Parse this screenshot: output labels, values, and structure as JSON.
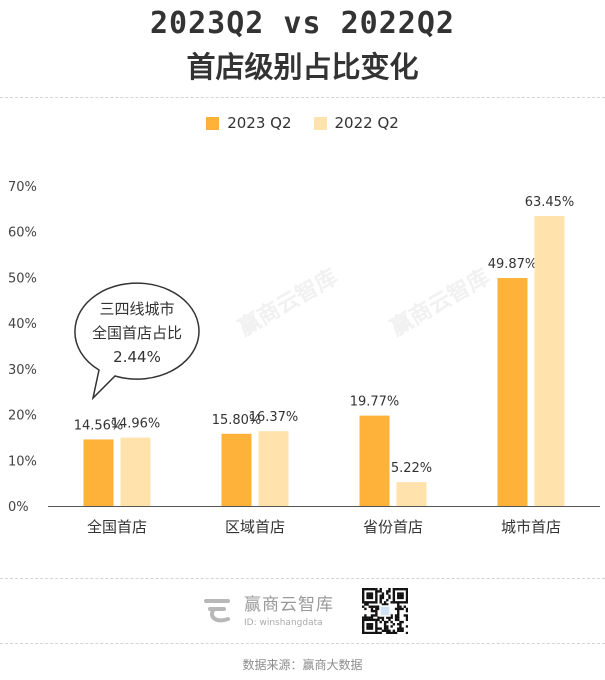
{
  "header": {
    "title_line1": "2023Q2  vs  2022Q2",
    "title_line2": "首店级别占比变化"
  },
  "chart_data": {
    "type": "bar",
    "categories": [
      "全国首店",
      "区域首店",
      "省份首店",
      "城市首店"
    ],
    "series": [
      {
        "name": "2023 Q2",
        "values": [
          14.56,
          15.8,
          19.77,
          49.87
        ],
        "labels": [
          "14.56%",
          "15.80%",
          "19.77%",
          "49.87%"
        ],
        "color": "#FFB23A"
      },
      {
        "name": "2022 Q2",
        "values": [
          14.96,
          16.37,
          5.22,
          63.45
        ],
        "labels": [
          "14.96%",
          "16.37%",
          "5.22%",
          "63.45%"
        ],
        "color": "#FFE2AC"
      }
    ],
    "ylim": [
      0,
      70
    ],
    "yticks": [
      "0%",
      "10%",
      "20%",
      "30%",
      "40%",
      "50%",
      "60%",
      "70%"
    ],
    "ytick_values": [
      0,
      10,
      20,
      30,
      40,
      50,
      60,
      70
    ],
    "grid": false,
    "legend": "top-center",
    "callout": {
      "lines": [
        "三四线城市",
        "全国首店占比",
        "2.44%"
      ],
      "category": "全国首店"
    }
  },
  "watermark_text": "赢商云智库",
  "footer": {
    "brand_name": "赢商云智库",
    "brand_id": "ID: winshangdata",
    "source": "数据来源：赢商大数据"
  },
  "colors": {
    "primary_bar": "#FFB23A",
    "secondary_bar": "#FFE2AC",
    "axis": "#555555"
  }
}
